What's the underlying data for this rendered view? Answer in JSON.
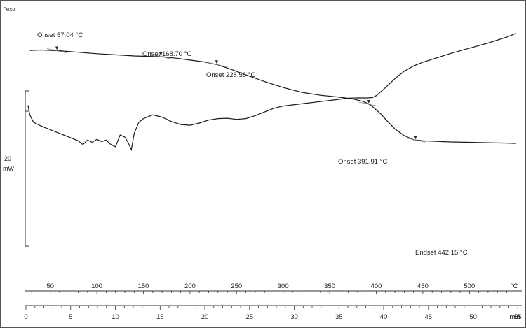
{
  "chart_data": {
    "type": "line",
    "title": "",
    "corner_label": "^exo",
    "y_scale_label": "20",
    "y_scale_unit": "mW",
    "temperature_axis": {
      "unit": "°C",
      "range": [
        25,
        550
      ],
      "ticks": [
        50,
        100,
        150,
        200,
        250,
        300,
        350,
        400,
        450,
        500
      ]
    },
    "time_axis": {
      "unit": "min",
      "range": [
        0,
        55
      ],
      "ticks": [
        0,
        5,
        10,
        15,
        20,
        25,
        30,
        35,
        40,
        45,
        50,
        55
      ]
    },
    "series": [
      {
        "curve": "upper",
        "x_temp": [
          28,
          40,
          60,
          80,
          100,
          120,
          140,
          155,
          170,
          185,
          200,
          215,
          230,
          245,
          260,
          280,
          300,
          320,
          340,
          360,
          375,
          385,
          390,
          395,
          400,
          405,
          410,
          420,
          430,
          440,
          450,
          460,
          480,
          500,
          520,
          540,
          550
        ],
        "y": [
          82,
          82.5,
          81.5,
          79.5,
          77.5,
          76,
          74.5,
          74,
          73.5,
          71.5,
          69,
          66.5,
          62.5,
          56,
          49,
          40,
          32,
          25.5,
          21.5,
          19,
          16.5,
          13.5,
          11,
          7,
          2,
          -4,
          -11,
          -24,
          -33,
          -38.5,
          -40,
          -40.5,
          -41.5,
          -42,
          -42.5,
          -43,
          -43.5
        ]
      },
      {
        "curve": "lower",
        "x_temp": [
          26,
          28,
          32,
          40,
          50,
          60,
          70,
          80,
          85,
          90,
          95,
          100,
          105,
          110,
          115,
          120,
          125,
          130,
          133,
          137,
          140,
          145,
          150,
          160,
          170,
          180,
          190,
          200,
          210,
          220,
          230,
          240,
          250,
          260,
          270,
          280,
          290,
          300,
          320,
          340,
          360,
          370,
          380,
          390,
          396,
          400,
          410,
          420,
          430,
          440,
          450,
          460,
          480,
          500,
          520,
          540,
          550
        ],
        "y": [
          8,
          -5,
          -15,
          -20,
          -25,
          -30,
          -35,
          -40,
          -45,
          -39,
          -42,
          -38,
          -41,
          -39,
          -45,
          -48,
          -32,
          -35,
          -41,
          -52,
          -30,
          -15,
          -10,
          -5,
          -8,
          -14,
          -18,
          -19,
          -16,
          -12,
          -10,
          -9.5,
          -11,
          -10,
          -6,
          -1,
          4,
          7,
          10,
          13,
          16,
          17.5,
          18,
          17.8,
          18.5,
          21,
          32,
          44,
          54,
          61,
          66,
          70,
          78,
          85,
          92,
          100,
          105
        ]
      }
    ],
    "annotations": [
      {
        "label": "Onset",
        "value": "57.04 °C"
      },
      {
        "label": "Onset",
        "value": "168.70 °C"
      },
      {
        "label": "Onset",
        "value": "228.56 °C"
      },
      {
        "label": "Onset",
        "value": "391.91 °C"
      },
      {
        "label": "Endset",
        "value": "442.15 °C"
      }
    ]
  }
}
